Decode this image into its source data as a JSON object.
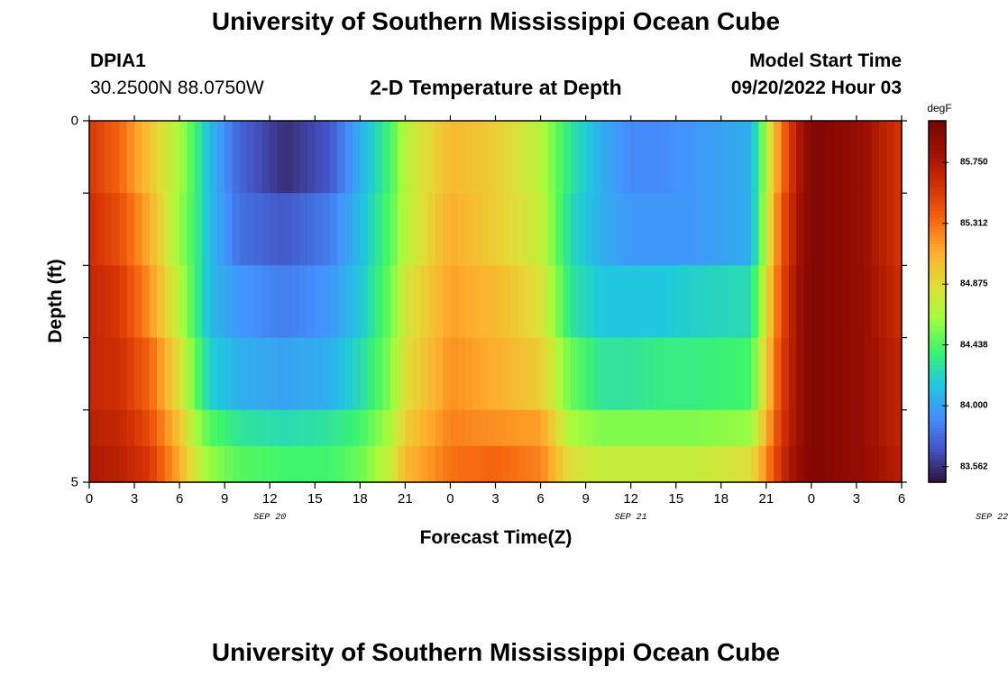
{
  "header": {
    "title": "University of Southern Mississippi Ocean Cube",
    "station_id": "DPIA1",
    "coordinates": "30.2500N  88.0750W",
    "plot_title": "2-D Temperature at Depth",
    "model_start_label": "Model Start Time",
    "model_start_value": "09/20/2022 Hour 03"
  },
  "footer": {
    "title": "University of Southern Mississippi Ocean Cube"
  },
  "chart_data": {
    "type": "heatmap",
    "title": "2-D Temperature at Depth",
    "xlabel": "Forecast Time(Z)",
    "ylabel": "Depth (ft)",
    "x_tick_labels": [
      "0",
      "3",
      "6",
      "9",
      "12",
      "15",
      "18",
      "21",
      "0",
      "3",
      "6",
      "9",
      "12",
      "15",
      "18",
      "21",
      "0",
      "3",
      "6"
    ],
    "date_labels": [
      {
        "text": "SEP 20",
        "hour": 12
      },
      {
        "text": "SEP 21",
        "hour": 36
      },
      {
        "text": "SEP 22",
        "hour": 60
      }
    ],
    "y_tick_labels": [
      {
        "text": "0",
        "depth": 0
      },
      {
        "text": "5",
        "depth": 5
      }
    ],
    "xlim": [
      0,
      54
    ],
    "ylim": [
      0,
      5
    ],
    "colorbar": {
      "unit": "degF",
      "range": [
        83.45,
        86.05
      ],
      "tick_labels": [
        "85.750",
        "85.312",
        "84.875",
        "84.438",
        "84.000",
        "83.562"
      ],
      "colors": [
        "#30123b",
        "#4454c4",
        "#4490fe",
        "#1fc9dd",
        "#3df56c",
        "#a4fc3c",
        "#e1dd37",
        "#feae2d",
        "#f6650e",
        "#d23105",
        "#a01101",
        "#7a0403"
      ]
    },
    "hours": [
      0,
      2,
      4,
      6,
      7,
      8,
      10,
      13,
      16,
      18,
      20,
      21,
      24,
      27,
      30,
      32,
      34,
      36,
      38,
      40,
      44,
      46,
      47,
      48,
      51,
      54
    ],
    "depths": [
      0.25,
      1.25,
      2.25,
      3.25,
      4.25,
      4.75
    ],
    "values": [
      [
        85.55,
        85.35,
        85.0,
        84.65,
        84.4,
        84.1,
        83.75,
        83.55,
        83.7,
        84.05,
        84.4,
        84.7,
        85.05,
        84.95,
        84.7,
        84.3,
        84.05,
        83.9,
        83.9,
        83.95,
        84.05,
        85.3,
        85.7,
        86.0,
        85.9,
        85.55
      ],
      [
        85.6,
        85.45,
        85.1,
        84.6,
        84.4,
        84.1,
        83.8,
        83.7,
        83.85,
        84.1,
        84.45,
        84.7,
        85.1,
        84.95,
        84.75,
        84.25,
        84.05,
        83.95,
        83.95,
        83.95,
        84.05,
        85.4,
        85.75,
        86.0,
        85.9,
        85.55
      ],
      [
        85.65,
        85.55,
        85.2,
        84.7,
        84.4,
        84.1,
        83.95,
        83.85,
        83.95,
        84.15,
        84.5,
        84.8,
        85.15,
        85.05,
        84.85,
        84.3,
        84.15,
        84.15,
        84.15,
        84.2,
        84.25,
        85.45,
        85.8,
        86.0,
        85.9,
        85.6
      ],
      [
        85.65,
        85.6,
        85.35,
        84.85,
        84.5,
        84.2,
        84.05,
        84.0,
        84.05,
        84.25,
        84.55,
        84.85,
        85.2,
        85.1,
        84.95,
        84.5,
        84.3,
        84.3,
        84.35,
        84.35,
        84.4,
        85.5,
        85.8,
        86.0,
        85.9,
        85.65
      ],
      [
        85.7,
        85.65,
        85.45,
        85.0,
        84.65,
        84.45,
        84.3,
        84.25,
        84.3,
        84.4,
        84.65,
        84.95,
        85.25,
        85.2,
        85.15,
        84.65,
        84.55,
        84.55,
        84.55,
        84.55,
        84.6,
        85.55,
        85.8,
        86.0,
        85.9,
        85.65
      ],
      [
        85.75,
        85.7,
        85.55,
        85.1,
        84.8,
        84.6,
        84.45,
        84.4,
        84.4,
        84.5,
        84.75,
        85.05,
        85.3,
        85.35,
        85.25,
        84.85,
        84.75,
        84.75,
        84.75,
        84.75,
        84.85,
        85.6,
        85.85,
        86.0,
        85.9,
        85.7
      ]
    ]
  }
}
